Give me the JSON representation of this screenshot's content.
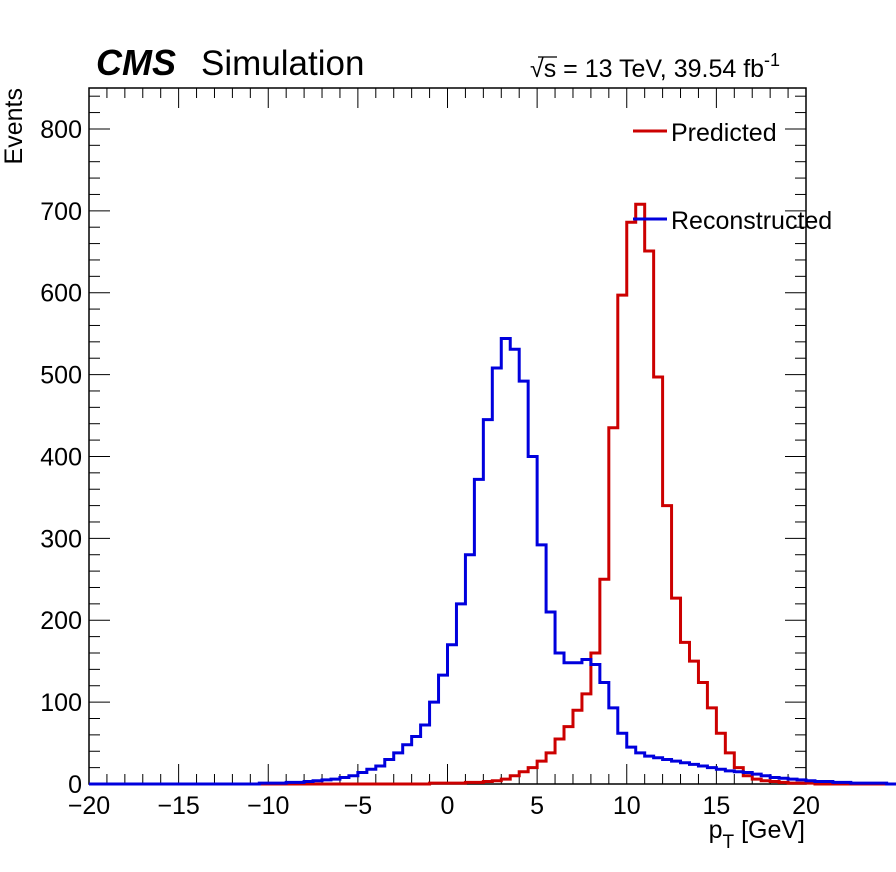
{
  "header": {
    "experiment": "CMS",
    "label": "Simulation",
    "energy_prefix": "√s = 13 TeV, 39.54 fb",
    "lumi_exponent": "-1"
  },
  "chart_data": {
    "type": "histogram",
    "xlabel_main": "p",
    "xlabel_sub": "T",
    "xlabel_unit": " [GeV]",
    "ylabel": "Events",
    "xlim": [
      -20,
      20
    ],
    "ylim": [
      0,
      850
    ],
    "xticks": [
      -20,
      -15,
      -10,
      -5,
      0,
      5,
      10,
      15,
      20
    ],
    "yticks": [
      0,
      100,
      200,
      300,
      400,
      500,
      600,
      700,
      800
    ],
    "bin_width": 0.5,
    "bin_start": -20,
    "grid": false,
    "legend_position": "top-right",
    "series": [
      {
        "name": "Predicted",
        "color": "#cc0000",
        "values": [
          0,
          0,
          0,
          0,
          0,
          0,
          0,
          0,
          0,
          0,
          0,
          0,
          0,
          0,
          0,
          0,
          0,
          0,
          0,
          0,
          0,
          0,
          0,
          0,
          0,
          0,
          0,
          0,
          0,
          0,
          0,
          0,
          0,
          0,
          0,
          0,
          0,
          0,
          1,
          1,
          1,
          1,
          2,
          2,
          3,
          4,
          6,
          10,
          15,
          20,
          28,
          38,
          55,
          70,
          90,
          110,
          160,
          250,
          435,
          597,
          686,
          708,
          651,
          497,
          340,
          227,
          173,
          150,
          124,
          93,
          62,
          38,
          20,
          10,
          6,
          4,
          3,
          2,
          1,
          1,
          1,
          0,
          0,
          0,
          0,
          0,
          0,
          0,
          0,
          0,
          0,
          0,
          0,
          0,
          0,
          0,
          0,
          0,
          0,
          0,
          0,
          0,
          0,
          0,
          0,
          0,
          0,
          0,
          0,
          0,
          0,
          0,
          0,
          0,
          0,
          0,
          0,
          0,
          0,
          0,
          0,
          0
        ]
      },
      {
        "name": "Reconstructed",
        "color": "#0000dd",
        "values": [
          0,
          0,
          0,
          0,
          0,
          0,
          0,
          0,
          0,
          0,
          0,
          0,
          0,
          0,
          0,
          0,
          0,
          0,
          0,
          1,
          1,
          1,
          2,
          2,
          3,
          4,
          5,
          6,
          8,
          10,
          14,
          18,
          22,
          30,
          38,
          48,
          58,
          72,
          100,
          133,
          170,
          220,
          280,
          372,
          445,
          508,
          544,
          531,
          492,
          400,
          292,
          210,
          160,
          148,
          148,
          152,
          146,
          124,
          93,
          62,
          45,
          38,
          34,
          32,
          30,
          28,
          26,
          24,
          22,
          20,
          18,
          16,
          15,
          14,
          12,
          10,
          8,
          7,
          6,
          5,
          4,
          3,
          3,
          2,
          2,
          1,
          1,
          1,
          1,
          0,
          0,
          0,
          0,
          0,
          0,
          0,
          0,
          0,
          0,
          0,
          0,
          0,
          0,
          0,
          0,
          0,
          0,
          0,
          0,
          0,
          0,
          0,
          0,
          0,
          0,
          0,
          0,
          0,
          0,
          0
        ]
      }
    ]
  }
}
